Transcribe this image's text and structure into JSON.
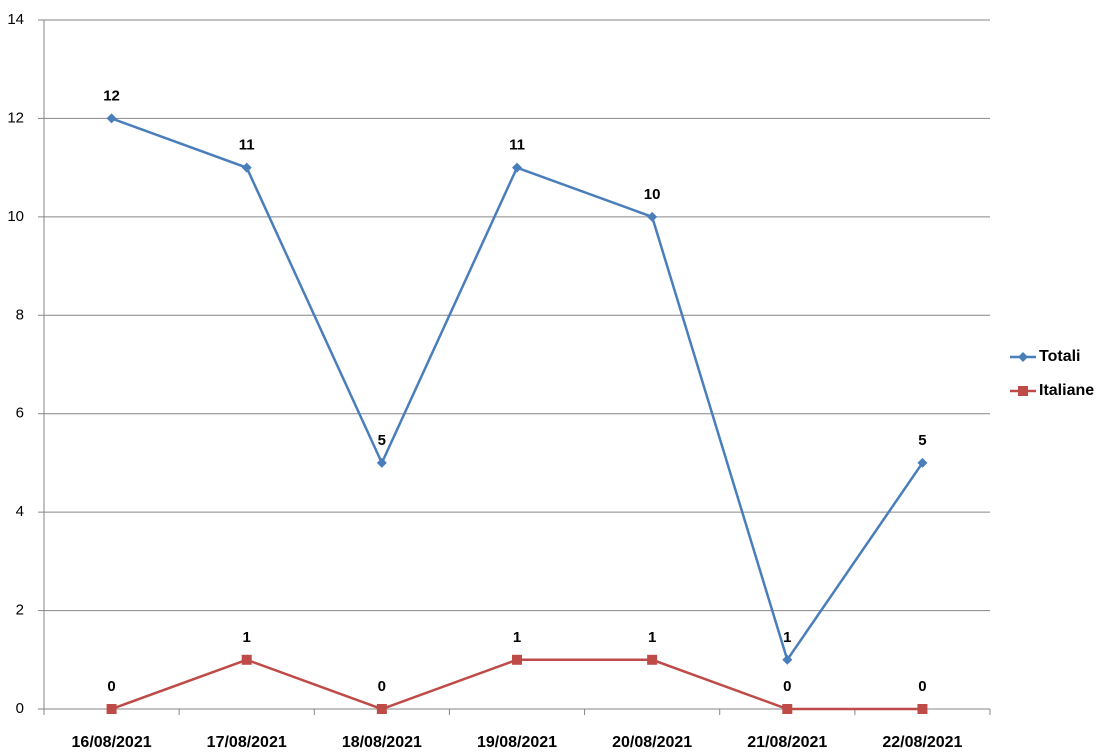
{
  "chart_data": {
    "type": "line",
    "categories": [
      "16/08/2021",
      "17/08/2021",
      "18/08/2021",
      "19/08/2021",
      "20/08/2021",
      "21/08/2021",
      "22/08/2021"
    ],
    "series": [
      {
        "name": "Totali",
        "color": "#4a7ebb",
        "marker": "diamond",
        "values": [
          12,
          11,
          5,
          11,
          10,
          1,
          5
        ]
      },
      {
        "name": "Italiane",
        "color": "#be4b48",
        "marker": "square",
        "values": [
          0,
          1,
          0,
          1,
          1,
          0,
          0
        ]
      }
    ],
    "ylim": [
      0,
      14
    ],
    "yticks": [
      0,
      2,
      4,
      6,
      8,
      10,
      12,
      14
    ],
    "grid": true,
    "legend": "right",
    "data_labels": true
  }
}
